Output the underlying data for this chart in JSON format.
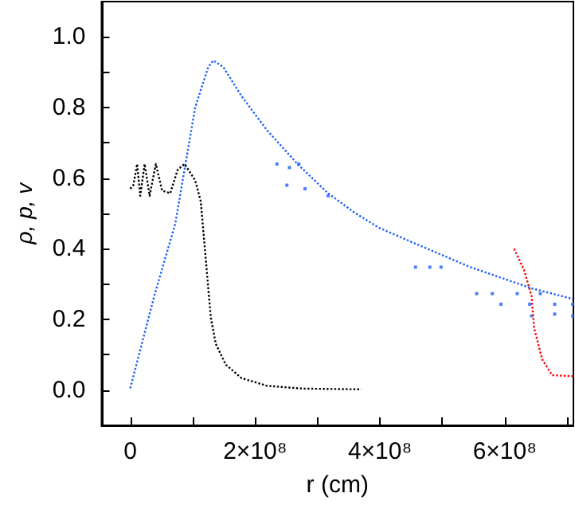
{
  "chart_data": {
    "type": "line",
    "xlabel": "r (cm)",
    "ylabel": "ρ, p, v",
    "xlim": [
      -46000000,
      710000000
    ],
    "ylim": [
      -0.1,
      1.1
    ],
    "xticks": [
      {
        "value": 0,
        "label": "0"
      },
      {
        "value": 100000000,
        "label": null
      },
      {
        "value": 200000000,
        "label": "2×10⁸"
      },
      {
        "value": 300000000,
        "label": null
      },
      {
        "value": 400000000,
        "label": "4×10⁸"
      },
      {
        "value": 500000000,
        "label": null
      },
      {
        "value": 600000000,
        "label": "6×10⁸"
      },
      {
        "value": 700000000,
        "label": null
      }
    ],
    "yticks": [
      {
        "value": -0.1,
        "label": null
      },
      {
        "value": 0,
        "label": "0.0"
      },
      {
        "value": 0.1,
        "label": null
      },
      {
        "value": 0.2,
        "label": "0.2"
      },
      {
        "value": 0.3,
        "label": null
      },
      {
        "value": 0.4,
        "label": "0.4"
      },
      {
        "value": 0.5,
        "label": null
      },
      {
        "value": 0.6,
        "label": "0.6"
      },
      {
        "value": 0.7,
        "label": null
      },
      {
        "value": 0.8,
        "label": "0.8"
      },
      {
        "value": 0.9,
        "label": null
      },
      {
        "value": 1.0,
        "label": "1.0"
      }
    ],
    "marker": "none",
    "line_style": "dotted",
    "series": [
      {
        "color": "#1f5fff",
        "x": [
          0,
          39000000,
          72000000,
          104000000,
          125000000,
          133000000,
          149000000,
          178000000,
          219000000,
          268000000,
          317000000,
          358000000,
          398000000,
          447000000,
          496000000,
          545000000,
          594000000,
          643000000,
          709000000
        ],
        "values": [
          0.005,
          0.27,
          0.47,
          0.8,
          0.915,
          0.933,
          0.915,
          0.833,
          0.736,
          0.64,
          0.557,
          0.504,
          0.46,
          0.422,
          0.385,
          0.348,
          0.318,
          0.288,
          0.258
        ]
      },
      {
        "color": "#1f5fff",
        "type": "scatter",
        "marker": "square",
        "x": [
          235000000,
          255000000,
          270000000,
          251000000,
          280000000,
          317000000,
          457000000,
          480000000,
          498000000,
          555000000,
          580000000,
          620000000,
          657000000,
          594000000,
          640000000,
          680000000,
          709000000,
          643000000,
          680000000,
          709000000
        ],
        "values": [
          0.64,
          0.63,
          0.64,
          0.58,
          0.57,
          0.55,
          0.348,
          0.348,
          0.348,
          0.273,
          0.273,
          0.273,
          0.273,
          0.243,
          0.243,
          0.243,
          0.243,
          0.21,
          0.215,
          0.21
        ]
      },
      {
        "color": "#000000",
        "x": [
          0,
          5000000,
          11000000,
          16000000,
          23000000,
          31000000,
          41000000,
          51000000,
          64000000,
          76000000,
          87000000,
          96000000,
          104000000,
          113000000,
          121000000,
          129000000,
          137000000,
          153000000,
          178000000,
          219000000,
          276000000,
          370000000
        ],
        "values": [
          0.57,
          0.58,
          0.64,
          0.55,
          0.64,
          0.55,
          0.64,
          0.565,
          0.557,
          0.624,
          0.64,
          0.616,
          0.594,
          0.534,
          0.37,
          0.206,
          0.131,
          0.072,
          0.034,
          0.012,
          0.004,
          0.002
        ]
      },
      {
        "color": "#ff0000",
        "x": [
          615000000,
          631000000,
          643000000,
          647000000,
          660000000,
          676000000,
          709000000
        ],
        "values": [
          0.4,
          0.34,
          0.266,
          0.176,
          0.087,
          0.042,
          0.039
        ]
      }
    ]
  }
}
